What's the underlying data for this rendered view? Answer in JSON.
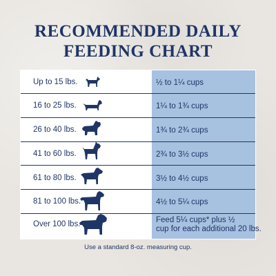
{
  "title": {
    "line1": "RECOMMENDED DAILY",
    "line2": "FEEDING CHART"
  },
  "rows": [
    {
      "weight": "Up to 15 lbs.",
      "cups": "½ to 1¼ cups",
      "icon": "small-terrier-icon"
    },
    {
      "weight": "16 to 25 lbs.",
      "cups": "1¼ to 1¾ cups",
      "icon": "dachshund-icon"
    },
    {
      "weight": "26 to 40 lbs.",
      "cups": "1¾ to 2¾ cups",
      "icon": "bulldog-icon"
    },
    {
      "weight": "41 to 60 lbs.",
      "cups": "2¾ to 3½ cups",
      "icon": "boxer-icon"
    },
    {
      "weight": "61 to 80 lbs.",
      "cups": "3½ to 4½ cups",
      "icon": "rottweiler-icon"
    },
    {
      "weight": "81 to 100 lbs.",
      "cups": "4½ to 5¼ cups",
      "icon": "labrador-icon"
    },
    {
      "weight": "Over 100 lbs.",
      "cups_line1": "Feed 5¼ cups* plus ½",
      "cups_line2": "cup for each additional 20 lbs.",
      "icon": "mastiff-icon"
    }
  ],
  "footnote": "Use a standard 8-oz. measuring cup.",
  "colors": {
    "navy": "#1f3566",
    "light_blue": "#a7c1e0",
    "background": "#e9e6e1"
  }
}
